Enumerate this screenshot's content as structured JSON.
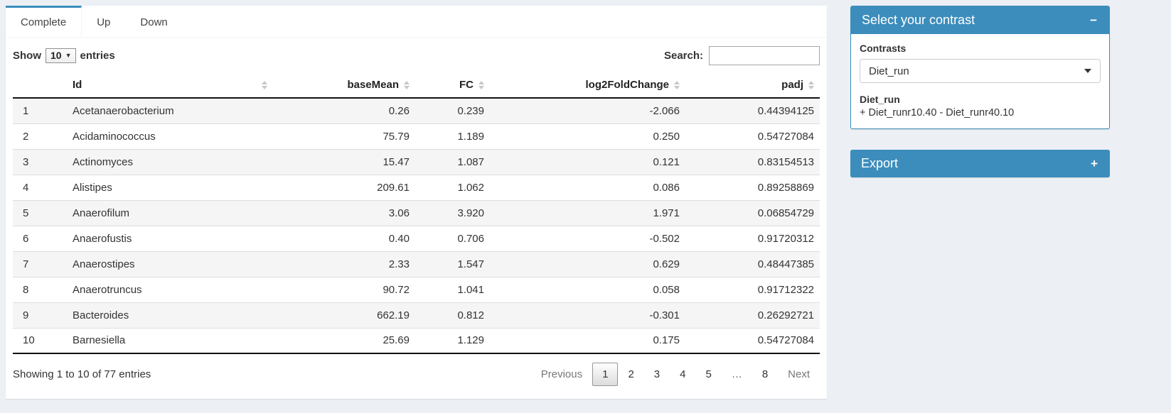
{
  "colors": {
    "accent": "#3c8dbc",
    "page_bg": "#ecf0f5"
  },
  "tabs": [
    {
      "label": "Complete",
      "active": true
    },
    {
      "label": "Up",
      "active": false
    },
    {
      "label": "Down",
      "active": false
    }
  ],
  "controls": {
    "show_label": "Show",
    "page_length": "10",
    "entries_label": "entries",
    "search_label": "Search:",
    "search_value": ""
  },
  "table": {
    "columns": [
      "Id",
      "baseMean",
      "FC",
      "log2FoldChange",
      "padj"
    ],
    "rows": [
      {
        "n": "1",
        "id": "Acetanaerobacterium",
        "baseMean": "0.26",
        "fc": "0.239",
        "log2fc": "-2.066",
        "padj": "0.44394125"
      },
      {
        "n": "2",
        "id": "Acidaminococcus",
        "baseMean": "75.79",
        "fc": "1.189",
        "log2fc": "0.250",
        "padj": "0.54727084"
      },
      {
        "n": "3",
        "id": "Actinomyces",
        "baseMean": "15.47",
        "fc": "1.087",
        "log2fc": "0.121",
        "padj": "0.83154513"
      },
      {
        "n": "4",
        "id": "Alistipes",
        "baseMean": "209.61",
        "fc": "1.062",
        "log2fc": "0.086",
        "padj": "0.89258869"
      },
      {
        "n": "5",
        "id": "Anaerofilum",
        "baseMean": "3.06",
        "fc": "3.920",
        "log2fc": "1.971",
        "padj": "0.06854729"
      },
      {
        "n": "6",
        "id": "Anaerofustis",
        "baseMean": "0.40",
        "fc": "0.706",
        "log2fc": "-0.502",
        "padj": "0.91720312"
      },
      {
        "n": "7",
        "id": "Anaerostipes",
        "baseMean": "2.33",
        "fc": "1.547",
        "log2fc": "0.629",
        "padj": "0.48447385"
      },
      {
        "n": "8",
        "id": "Anaerotruncus",
        "baseMean": "90.72",
        "fc": "1.041",
        "log2fc": "0.058",
        "padj": "0.91712322"
      },
      {
        "n": "9",
        "id": "Bacteroides",
        "baseMean": "662.19",
        "fc": "0.812",
        "log2fc": "-0.301",
        "padj": "0.26292721"
      },
      {
        "n": "10",
        "id": "Barnesiella",
        "baseMean": "25.69",
        "fc": "1.129",
        "log2fc": "0.175",
        "padj": "0.54727084"
      }
    ]
  },
  "footer": {
    "info": "Showing 1 to 10 of 77 entries",
    "previous": "Previous",
    "pages": [
      "1",
      "2",
      "3",
      "4",
      "5",
      "…",
      "8"
    ],
    "active_page": "1",
    "next": "Next"
  },
  "sidebar": {
    "contrast_panel": {
      "title": "Select your contrast",
      "collapse_icon": "−",
      "contrasts_label": "Contrasts",
      "selected_contrast": "Diet_run",
      "contrast_name": "Diet_run",
      "contrast_formula": "+ Diet_runr10.40 - Diet_runr40.10"
    },
    "export_panel": {
      "title": "Export",
      "expand_icon": "+"
    }
  }
}
